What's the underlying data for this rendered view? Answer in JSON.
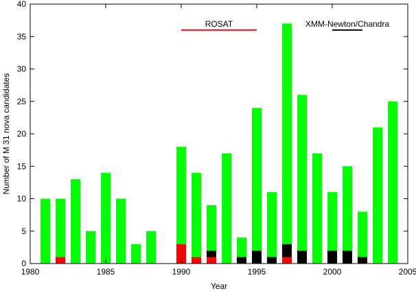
{
  "chart_data": {
    "type": "bar",
    "stacked": true,
    "title": "",
    "xlabel": "Year",
    "ylabel": "Number of M 31 nova candidates",
    "xlim": [
      1980,
      2005
    ],
    "ylim": [
      0,
      40
    ],
    "xticks": [
      1980,
      1985,
      1990,
      1995,
      2000,
      2005
    ],
    "yticks": [
      0,
      5,
      10,
      15,
      20,
      25,
      30,
      35,
      40
    ],
    "grid": false,
    "legend": "none",
    "x": [
      1981,
      1982,
      1983,
      1984,
      1985,
      1986,
      1987,
      1988,
      1990,
      1991,
      1992,
      1993,
      1994,
      1995,
      1996,
      1997,
      1998,
      1999,
      2000,
      2001,
      2002,
      2003,
      2004
    ],
    "totals": [
      10,
      10,
      13,
      5,
      14,
      10,
      3,
      5,
      18,
      14,
      9,
      17,
      4,
      24,
      11,
      37,
      26,
      17,
      11,
      15,
      8,
      21,
      25
    ],
    "series": [
      {
        "color": "#ff0000",
        "values": [
          0,
          1,
          0,
          0,
          0,
          0,
          0,
          0,
          3,
          1,
          1,
          0,
          0,
          0,
          0,
          1,
          0,
          0,
          0,
          0,
          0,
          0,
          0
        ]
      },
      {
        "color": "#000000",
        "values": [
          0,
          0,
          0,
          0,
          0,
          0,
          0,
          0,
          0,
          0,
          1,
          0,
          1,
          2,
          1,
          2,
          2,
          0,
          2,
          2,
          1,
          0,
          0
        ]
      },
      {
        "color": "#00ff00",
        "values": [
          10,
          9,
          13,
          5,
          14,
          10,
          3,
          5,
          15,
          13,
          7,
          17,
          3,
          22,
          10,
          34,
          24,
          17,
          9,
          13,
          7,
          21,
          25
        ]
      }
    ],
    "annotations": [
      {
        "label": "ROSAT",
        "x_start": 1990,
        "x_end": 1995,
        "y": 36,
        "color": "#ff0000"
      },
      {
        "label": "XMM-Newton/Chandra",
        "x_start": 2000,
        "x_end": 2002,
        "y": 36,
        "color": "#000000"
      }
    ]
  }
}
